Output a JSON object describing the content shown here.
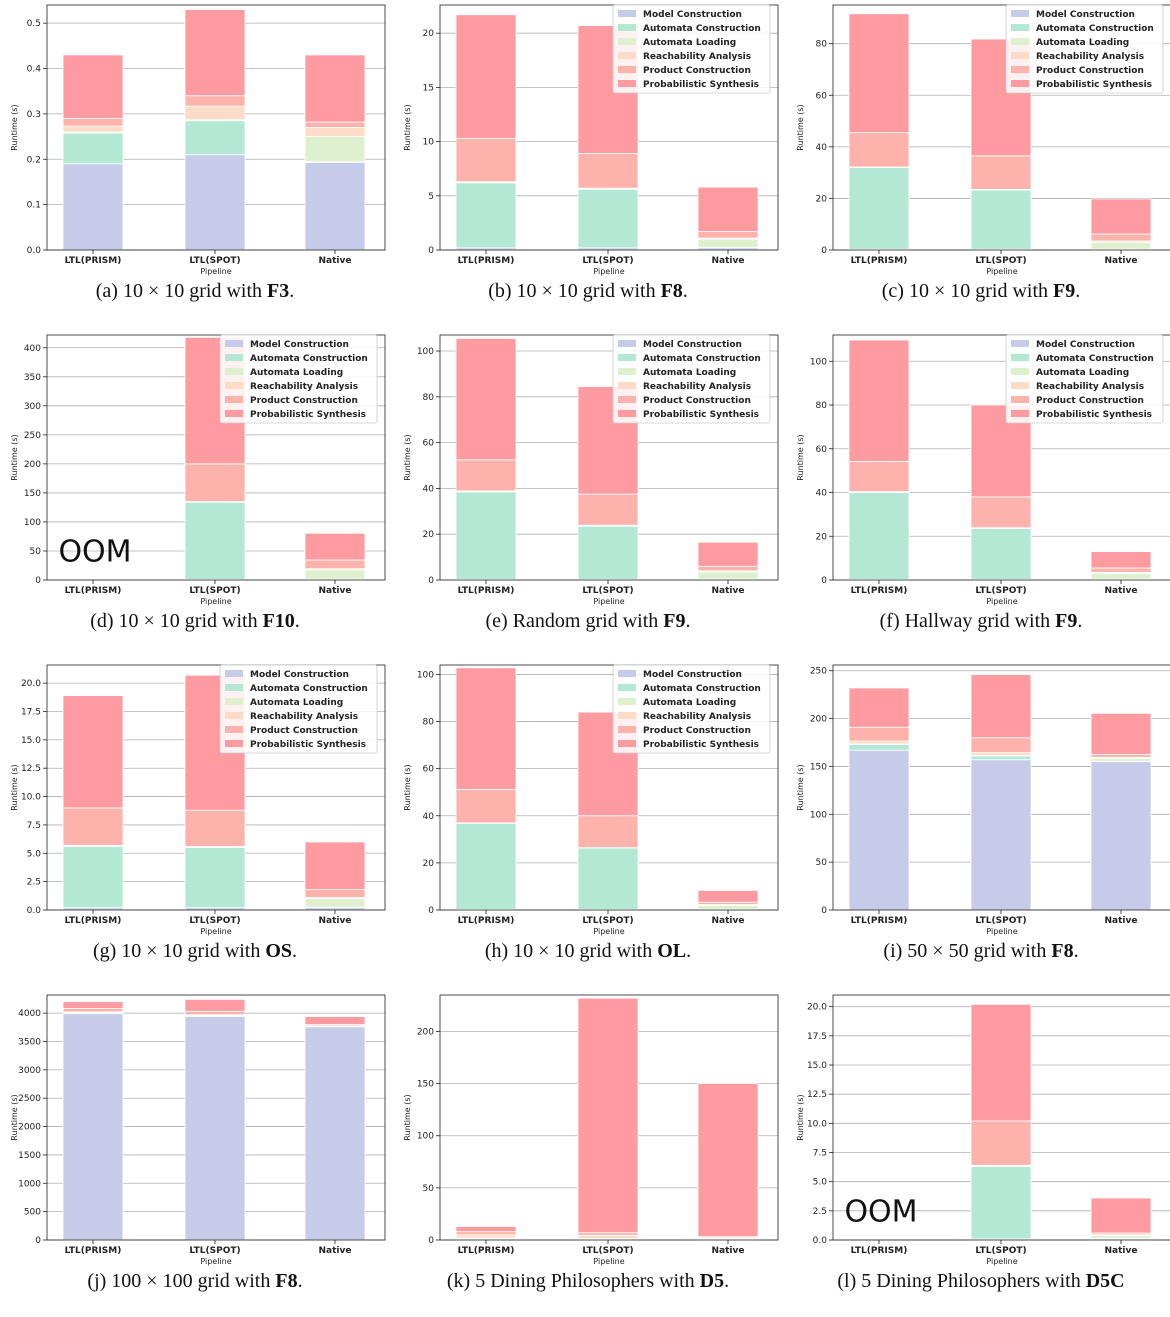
{
  "legend_labels": [
    "Model Construction",
    "Automata Construction",
    "Automata Loading",
    "Reachability Analysis",
    "Product Construction",
    "Probabilistic Synthesis"
  ],
  "colors": [
    "#c5cbe8",
    "#b2e8d4",
    "#dff0cf",
    "#fcdcc6",
    "#fdb3ab",
    "#fd9ba1"
  ],
  "chart_data": [
    {
      "type": "bar",
      "stacked": true,
      "caption": {
        "prefix": "(a) ",
        "pre": "10 × 10 grid with ",
        "bold": "F3",
        "post": "."
      },
      "xlabel": "Pipeline",
      "ylabel": "Runtime (s)",
      "categories": [
        "LTL(PRISM)",
        "LTL(SPOT)",
        "Native"
      ],
      "ylim": [
        0,
        0.54
      ],
      "yticks": [
        "0.0",
        "0.1",
        "0.2",
        "0.3",
        "0.4",
        "0.5"
      ],
      "ytick_values": [
        0,
        0.1,
        0.2,
        0.3,
        0.4,
        0.5
      ],
      "legend": false,
      "annotation": "",
      "series": [
        {
          "name": "Model Construction",
          "values": [
            0.19,
            0.21,
            0.193
          ]
        },
        {
          "name": "Automata Construction",
          "values": [
            0.068,
            0.075,
            0.002
          ]
        },
        {
          "name": "Automata Loading",
          "values": [
            0.002,
            0.002,
            0.055
          ]
        },
        {
          "name": "Reachability Analysis",
          "values": [
            0.013,
            0.03,
            0.02
          ]
        },
        {
          "name": "Product Construction",
          "values": [
            0.017,
            0.023,
            0.012
          ]
        },
        {
          "name": "Probabilistic Synthesis",
          "values": [
            0.14,
            0.19,
            0.148
          ]
        }
      ]
    },
    {
      "type": "bar",
      "stacked": true,
      "caption": {
        "prefix": "(b) ",
        "pre": "10 × 10 grid with ",
        "bold": "F8",
        "post": "."
      },
      "xlabel": "Pipeline",
      "ylabel": "Runtime (s)",
      "categories": [
        "LTL(PRISM)",
        "LTL(SPOT)",
        "Native"
      ],
      "ylim": [
        0,
        22.6
      ],
      "yticks": [
        "0",
        "5",
        "10",
        "15",
        "20"
      ],
      "ytick_values": [
        0,
        5,
        10,
        15,
        20
      ],
      "legend": true,
      "annotation": "",
      "series": [
        {
          "name": "Model Construction",
          "values": [
            0.2,
            0.2,
            0.2
          ]
        },
        {
          "name": "Automata Construction",
          "values": [
            6.0,
            5.4,
            0.05
          ]
        },
        {
          "name": "Automata Loading",
          "values": [
            0.05,
            0.05,
            0.75
          ]
        },
        {
          "name": "Reachability Analysis",
          "values": [
            0.05,
            0.05,
            0.1
          ]
        },
        {
          "name": "Product Construction",
          "values": [
            4.0,
            3.2,
            0.6
          ]
        },
        {
          "name": "Probabilistic Synthesis",
          "values": [
            11.4,
            11.8,
            4.1
          ]
        }
      ]
    },
    {
      "type": "bar",
      "stacked": true,
      "caption": {
        "prefix": "(c) ",
        "pre": "10 × 10 grid with ",
        "bold": "F9",
        "post": "."
      },
      "xlabel": "Pipeline",
      "ylabel": "Runtime (s)",
      "categories": [
        "LTL(PRISM)",
        "LTL(SPOT)",
        "Native"
      ],
      "ylim": [
        0,
        95
      ],
      "yticks": [
        "0",
        "20",
        "40",
        "60",
        "80"
      ],
      "ytick_values": [
        0,
        20,
        40,
        60,
        80
      ],
      "legend": true,
      "annotation": "",
      "series": [
        {
          "name": "Model Construction",
          "values": [
            0.3,
            0.3,
            0.3
          ]
        },
        {
          "name": "Automata Construction",
          "values": [
            31.7,
            23.0,
            0.1
          ]
        },
        {
          "name": "Automata Loading",
          "values": [
            0.1,
            0.1,
            2.6
          ]
        },
        {
          "name": "Reachability Analysis",
          "values": [
            0.1,
            0.1,
            0.5
          ]
        },
        {
          "name": "Product Construction",
          "values": [
            13.3,
            13.0,
            2.7
          ]
        },
        {
          "name": "Probabilistic Synthesis",
          "values": [
            46.1,
            45.3,
            13.6
          ]
        }
      ]
    },
    {
      "type": "bar",
      "stacked": true,
      "caption": {
        "prefix": "(d) ",
        "pre": "10 × 10 grid with ",
        "bold": "F10",
        "post": "."
      },
      "xlabel": "Pipeline",
      "ylabel": "Runtime (s)",
      "categories": [
        "LTL(PRISM)",
        "LTL(SPOT)",
        "Native"
      ],
      "ylim": [
        0,
        422
      ],
      "yticks": [
        "0",
        "50",
        "100",
        "150",
        "200",
        "250",
        "300",
        "350",
        "400"
      ],
      "ytick_values": [
        0,
        50,
        100,
        150,
        200,
        250,
        300,
        350,
        400
      ],
      "legend": true,
      "annotation": "OOM",
      "series": [
        {
          "name": "Model Construction",
          "values": [
            0,
            1,
            1
          ]
        },
        {
          "name": "Automata Construction",
          "values": [
            0,
            133,
            0.5
          ]
        },
        {
          "name": "Automata Loading",
          "values": [
            0,
            0.5,
            16
          ]
        },
        {
          "name": "Reachability Analysis",
          "values": [
            0,
            0.5,
            2
          ]
        },
        {
          "name": "Product Construction",
          "values": [
            0,
            65,
            15
          ]
        },
        {
          "name": "Probabilistic Synthesis",
          "values": [
            0,
            218,
            46
          ]
        }
      ]
    },
    {
      "type": "bar",
      "stacked": true,
      "caption": {
        "prefix": "(e) ",
        "pre": "Random grid with ",
        "bold": "F9",
        "post": "."
      },
      "xlabel": "Pipeline",
      "ylabel": "Runtime (s)",
      "categories": [
        "LTL(PRISM)",
        "LTL(SPOT)",
        "Native"
      ],
      "ylim": [
        0,
        107
      ],
      "yticks": [
        "0",
        "20",
        "40",
        "60",
        "80",
        "100"
      ],
      "ytick_values": [
        0,
        20,
        40,
        60,
        80,
        100
      ],
      "legend": true,
      "annotation": "",
      "series": [
        {
          "name": "Model Construction",
          "values": [
            0.3,
            0.3,
            0.3
          ]
        },
        {
          "name": "Automata Construction",
          "values": [
            38.2,
            23.2,
            0.2
          ]
        },
        {
          "name": "Automata Loading",
          "values": [
            0.2,
            0.2,
            3.0
          ]
        },
        {
          "name": "Reachability Analysis",
          "values": [
            0.2,
            0.2,
            0.5
          ]
        },
        {
          "name": "Product Construction",
          "values": [
            13.6,
            13.6,
            2.0
          ]
        },
        {
          "name": "Probabilistic Synthesis",
          "values": [
            53.0,
            47.0,
            10.5
          ]
        }
      ]
    },
    {
      "type": "bar",
      "stacked": true,
      "caption": {
        "prefix": "(f) ",
        "pre": "Hallway grid with ",
        "bold": "F9",
        "post": "."
      },
      "xlabel": "Pipeline",
      "ylabel": "Runtime (s)",
      "categories": [
        "LTL(PRISM)",
        "LTL(SPOT)",
        "Native"
      ],
      "ylim": [
        0,
        112
      ],
      "yticks": [
        "0",
        "20",
        "40",
        "60",
        "80",
        "100"
      ],
      "ytick_values": [
        0,
        20,
        40,
        60,
        80,
        100
      ],
      "legend": true,
      "annotation": "",
      "series": [
        {
          "name": "Model Construction",
          "values": [
            0.3,
            0.3,
            0.3
          ]
        },
        {
          "name": "Automata Construction",
          "values": [
            39.7,
            23.2,
            0.2
          ]
        },
        {
          "name": "Automata Loading",
          "values": [
            0.2,
            0.2,
            2.5
          ]
        },
        {
          "name": "Reachability Analysis",
          "values": [
            0.2,
            0.2,
            0.5
          ]
        },
        {
          "name": "Product Construction",
          "values": [
            13.8,
            14.1,
            2.0
          ]
        },
        {
          "name": "Probabilistic Synthesis",
          "values": [
            55.5,
            42.0,
            7.5
          ]
        }
      ]
    },
    {
      "type": "bar",
      "stacked": true,
      "caption": {
        "prefix": "(g) ",
        "pre": "10 × 10 grid with ",
        "bold": "OS",
        "post": "."
      },
      "xlabel": "Pipeline",
      "ylabel": "Runtime (s)",
      "categories": [
        "LTL(PRISM)",
        "LTL(SPOT)",
        "Native"
      ],
      "ylim": [
        0,
        21.6
      ],
      "yticks": [
        "0.0",
        "2.5",
        "5.0",
        "7.5",
        "10.0",
        "12.5",
        "15.0",
        "17.5",
        "20.0"
      ],
      "ytick_values": [
        0,
        2.5,
        5,
        7.5,
        10,
        12.5,
        15,
        17.5,
        20
      ],
      "legend": true,
      "annotation": "",
      "series": [
        {
          "name": "Model Construction",
          "values": [
            0.2,
            0.2,
            0.2
          ]
        },
        {
          "name": "Automata Construction",
          "values": [
            5.4,
            5.3,
            0.05
          ]
        },
        {
          "name": "Automata Loading",
          "values": [
            0.05,
            0.05,
            0.75
          ]
        },
        {
          "name": "Reachability Analysis",
          "values": [
            0.05,
            0.05,
            0.1
          ]
        },
        {
          "name": "Product Construction",
          "values": [
            3.3,
            3.2,
            0.7
          ]
        },
        {
          "name": "Probabilistic Synthesis",
          "values": [
            9.9,
            11.9,
            4.2
          ]
        }
      ]
    },
    {
      "type": "bar",
      "stacked": true,
      "caption": {
        "prefix": "(h) ",
        "pre": "10 × 10 grid with ",
        "bold": "OL",
        "post": "."
      },
      "xlabel": "Pipeline",
      "ylabel": "Runtime (s)",
      "categories": [
        "LTL(PRISM)",
        "LTL(SPOT)",
        "Native"
      ],
      "ylim": [
        0,
        104
      ],
      "yticks": [
        "0",
        "20",
        "40",
        "60",
        "80",
        "100"
      ],
      "ytick_values": [
        0,
        20,
        40,
        60,
        80,
        100
      ],
      "legend": true,
      "annotation": "",
      "series": [
        {
          "name": "Model Construction",
          "values": [
            0.3,
            0.3,
            0.3
          ]
        },
        {
          "name": "Automata Construction",
          "values": [
            36.5,
            26.0,
            0.1
          ]
        },
        {
          "name": "Automata Loading",
          "values": [
            0.1,
            0.1,
            1.5
          ]
        },
        {
          "name": "Reachability Analysis",
          "values": [
            0.1,
            0.1,
            0.4
          ]
        },
        {
          "name": "Product Construction",
          "values": [
            14.2,
            13.5,
            1.0
          ]
        },
        {
          "name": "Probabilistic Synthesis",
          "values": [
            51.6,
            44.0,
            5.0
          ]
        }
      ]
    },
    {
      "type": "bar",
      "stacked": true,
      "caption": {
        "prefix": "(i) ",
        "pre": "50 × 50 grid with ",
        "bold": "F8",
        "post": "."
      },
      "xlabel": "Pipeline",
      "ylabel": "Runtime (s)",
      "categories": [
        "LTL(PRISM)",
        "LTL(SPOT)",
        "Native"
      ],
      "ylim": [
        0,
        256
      ],
      "yticks": [
        "0",
        "50",
        "100",
        "150",
        "200",
        "250"
      ],
      "ytick_values": [
        0,
        50,
        100,
        150,
        200,
        250
      ],
      "legend": false,
      "annotation": "",
      "series": [
        {
          "name": "Model Construction",
          "values": [
            167,
            157,
            155
          ]
        },
        {
          "name": "Automata Construction",
          "values": [
            6,
            4,
            0.5
          ]
        },
        {
          "name": "Automata Loading",
          "values": [
            0.5,
            0.5,
            3
          ]
        },
        {
          "name": "Reachability Analysis",
          "values": [
            3,
            3,
            1
          ]
        },
        {
          "name": "Product Construction",
          "values": [
            14.5,
            15.5,
            3
          ]
        },
        {
          "name": "Probabilistic Synthesis",
          "values": [
            41,
            66,
            43
          ]
        }
      ]
    },
    {
      "type": "bar",
      "stacked": true,
      "caption": {
        "prefix": "(j) ",
        "pre": "100 × 100 grid with ",
        "bold": "F8",
        "post": "."
      },
      "xlabel": "Pipeline",
      "ylabel": "Runtime (s)",
      "categories": [
        "LTL(PRISM)",
        "LTL(SPOT)",
        "Native"
      ],
      "ylim": [
        0,
        4320
      ],
      "yticks": [
        "0",
        "500",
        "1000",
        "1500",
        "2000",
        "2500",
        "3000",
        "3500",
        "4000"
      ],
      "ytick_values": [
        0,
        500,
        1000,
        1500,
        2000,
        2500,
        3000,
        3500,
        4000
      ],
      "legend": false,
      "annotation": "",
      "series": [
        {
          "name": "Model Construction",
          "values": [
            3990,
            3940,
            3760
          ]
        },
        {
          "name": "Automata Construction",
          "values": [
            20,
            20,
            2
          ]
        },
        {
          "name": "Automata Loading",
          "values": [
            2,
            2,
            10
          ]
        },
        {
          "name": "Reachability Analysis",
          "values": [
            10,
            10,
            5
          ]
        },
        {
          "name": "Product Construction",
          "values": [
            60,
            60,
            20
          ]
        },
        {
          "name": "Probabilistic Synthesis",
          "values": [
            120,
            210,
            143
          ]
        }
      ]
    },
    {
      "type": "bar",
      "stacked": true,
      "caption": {
        "prefix": "(k) ",
        "pre": "5 Dining Philosophers with ",
        "bold": "D5",
        "post": "."
      },
      "xlabel": "Pipeline",
      "ylabel": "Runtime (s)",
      "categories": [
        "LTL(PRISM)",
        "LTL(SPOT)",
        "Native"
      ],
      "ylim": [
        0,
        235
      ],
      "yticks": [
        "0",
        "50",
        "100",
        "150",
        "200"
      ],
      "ytick_values": [
        0,
        50,
        100,
        150,
        200
      ],
      "legend": false,
      "annotation": "",
      "series": [
        {
          "name": "Model Construction",
          "values": [
            0.5,
            0.5,
            0.5
          ]
        },
        {
          "name": "Automata Construction",
          "values": [
            1.0,
            0.5,
            0.2
          ]
        },
        {
          "name": "Automata Loading",
          "values": [
            0.5,
            0.5,
            1.0
          ]
        },
        {
          "name": "Reachability Analysis",
          "values": [
            3.0,
            3.0,
            0.5
          ]
        },
        {
          "name": "Product Construction",
          "values": [
            3.0,
            2.5,
            1.0
          ]
        },
        {
          "name": "Probabilistic Synthesis",
          "values": [
            5.0,
            225.0,
            147.0
          ]
        }
      ]
    },
    {
      "type": "bar",
      "stacked": true,
      "caption": {
        "prefix": "(l) ",
        "pre": "5 Dining Philosophers with ",
        "bold": "D5C",
        "post": ""
      },
      "xlabel": "Pipeline",
      "ylabel": "Runtime (s)",
      "categories": [
        "LTL(PRISM)",
        "LTL(SPOT)",
        "Native"
      ],
      "ylim": [
        0,
        21.0
      ],
      "yticks": [
        "0.0",
        "2.5",
        "5.0",
        "7.5",
        "10.0",
        "12.5",
        "15.0",
        "17.5",
        "20.0"
      ],
      "ytick_values": [
        0,
        2.5,
        5,
        7.5,
        10,
        12.5,
        15,
        17.5,
        20
      ],
      "legend": false,
      "annotation": "OOM",
      "series": [
        {
          "name": "Model Construction",
          "values": [
            0,
            0.1,
            0.1
          ]
        },
        {
          "name": "Automata Construction",
          "values": [
            0,
            6.2,
            0.05
          ]
        },
        {
          "name": "Automata Loading",
          "values": [
            0,
            0.05,
            0.25
          ]
        },
        {
          "name": "Reachability Analysis",
          "values": [
            0,
            0.05,
            0.05
          ]
        },
        {
          "name": "Product Construction",
          "values": [
            0,
            3.8,
            0.15
          ]
        },
        {
          "name": "Probabilistic Synthesis",
          "values": [
            0,
            10.0,
            3.0
          ]
        }
      ]
    }
  ]
}
